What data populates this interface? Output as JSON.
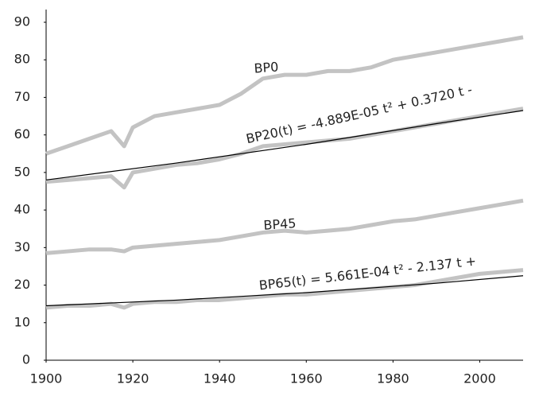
{
  "chart_data": {
    "type": "line",
    "x": [
      1900,
      1905,
      1910,
      1915,
      1918,
      1920,
      1925,
      1930,
      1935,
      1940,
      1945,
      1950,
      1955,
      1960,
      1965,
      1970,
      1975,
      1980,
      1985,
      1990,
      1995,
      2000,
      2005,
      2010
    ],
    "series": [
      {
        "name": "BP0",
        "color": "#c3c3c3",
        "values": [
          55,
          57,
          59,
          61,
          57,
          62,
          65,
          66,
          67,
          68,
          71,
          75,
          76,
          76,
          77,
          77,
          78,
          80,
          81,
          82,
          83,
          84,
          85,
          86
        ]
      },
      {
        "name": "BP45",
        "color": "#c3c3c3",
        "values": [
          28.5,
          29,
          29.5,
          29.5,
          29,
          30,
          30.5,
          31,
          31.5,
          32,
          33,
          34,
          34.5,
          34,
          34.5,
          35,
          36,
          37,
          37.5,
          38.5,
          39.5,
          40.5,
          41.5,
          42.5
        ]
      }
    ],
    "unlabeled_series": [
      {
        "color": "#c3c3c3",
        "values": [
          47.5,
          48,
          48.5,
          49,
          46,
          50,
          51,
          52,
          52.5,
          53.5,
          55,
          57,
          57.5,
          58,
          58.5,
          59,
          60,
          61,
          62,
          63,
          64,
          65,
          66,
          67
        ]
      },
      {
        "color": "#c3c3c3",
        "values": [
          14,
          14.5,
          14.5,
          15,
          14,
          15,
          15.5,
          15.5,
          16,
          16,
          16.5,
          17,
          17.5,
          17.5,
          18,
          18.5,
          19,
          19.5,
          20,
          21,
          22,
          23,
          23.5,
          24
        ]
      }
    ],
    "trendlines": [
      {
        "name": "BP20(t) = -4.889E-05 t² + 0.3720 t -",
        "color": "#000000",
        "x": [
          1900,
          1930,
          1960,
          1990,
          2010
        ],
        "values": [
          48,
          52.5,
          57.5,
          63,
          66.5
        ]
      },
      {
        "name": "BP65(t) = 5.661E-04 t² - 2.137 t +",
        "color": "#000000",
        "x": [
          1900,
          1930,
          1960,
          1990,
          2010
        ],
        "values": [
          14.5,
          16,
          18,
          20.5,
          22.5
        ]
      }
    ],
    "xlim": [
      1900,
      2010
    ],
    "xticks": [
      1900,
      1920,
      1940,
      1960,
      1980,
      2000
    ],
    "ylim": [
      0,
      90
    ],
    "yticks": [
      0,
      10,
      20,
      30,
      40,
      50,
      60,
      70,
      80,
      90
    ]
  }
}
